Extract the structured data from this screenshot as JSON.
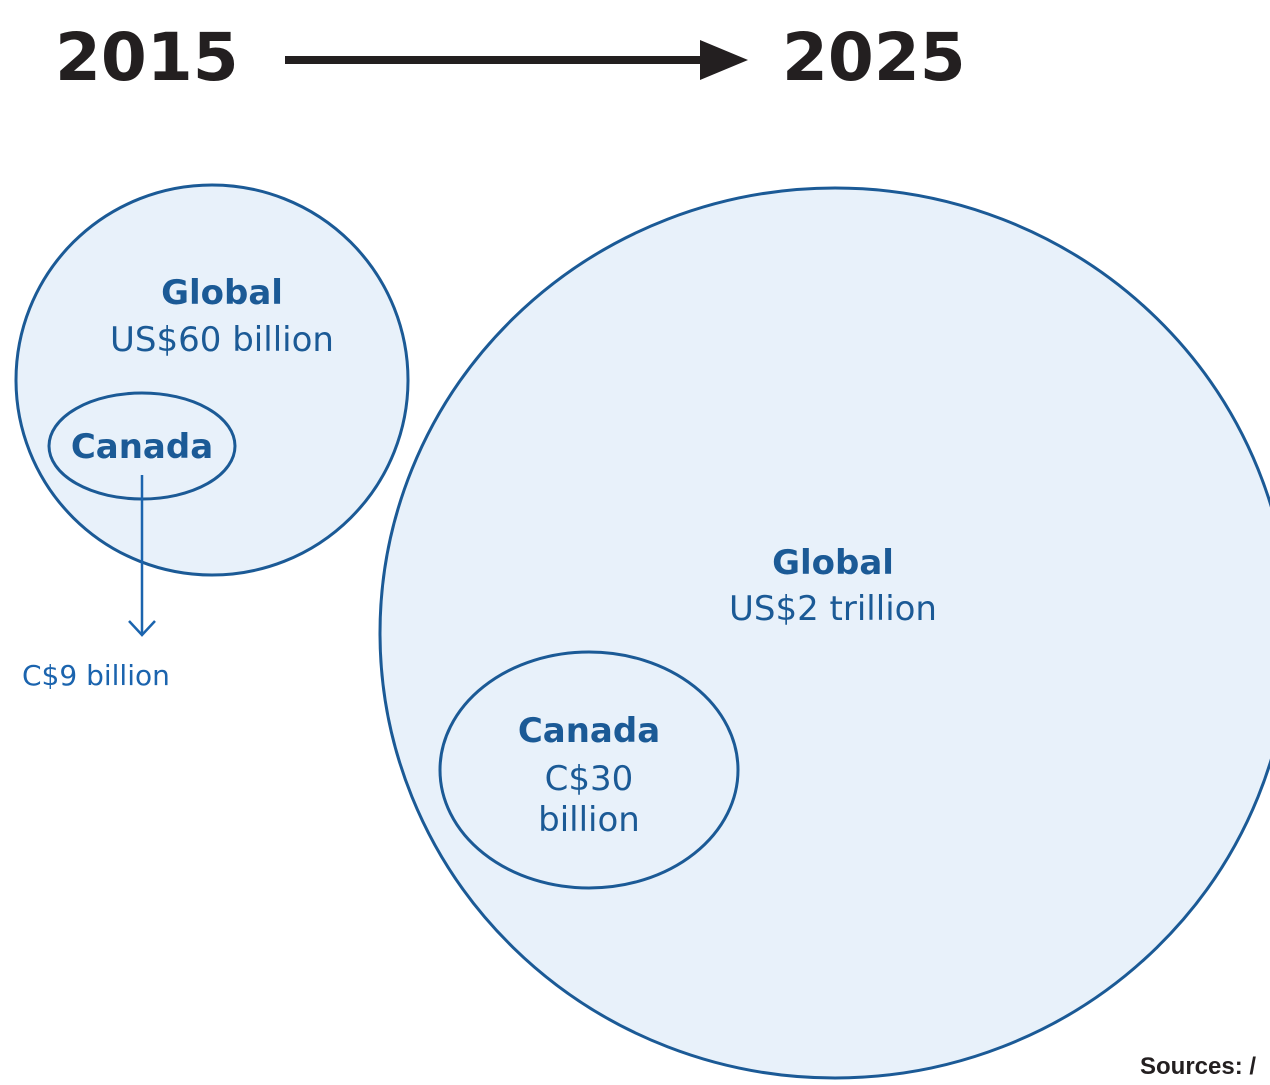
{
  "timeline": {
    "start_year": "2015",
    "end_year": "2025"
  },
  "bubbles_2015": {
    "global_title": "Global",
    "global_value": "US$60 billion",
    "canada_title": "Canada",
    "canada_value": "C$9 billion"
  },
  "bubbles_2025": {
    "global_title": "Global",
    "global_value": "US$2 trillion",
    "canada_title": "Canada",
    "canada_value_line1": "C$30",
    "canada_value_line2": "billion"
  },
  "footer": {
    "sources": "Sources: /"
  },
  "colors": {
    "bubble_fill": "#e8f1fa",
    "bubble_stroke": "#1b5a96",
    "text_dark": "#231f20",
    "text_blue": "#1b5a96"
  }
}
